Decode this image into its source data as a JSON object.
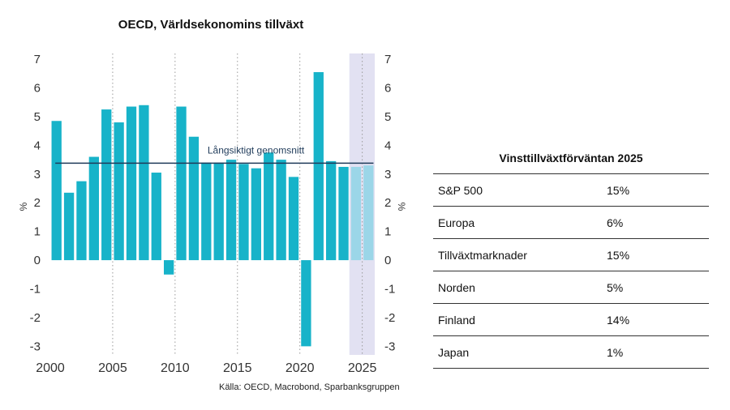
{
  "chart_data": {
    "type": "bar",
    "title": "OECD, Världsekonomins tillväxt",
    "y_unit_left": "%",
    "y_unit_right": "%",
    "ylim": [
      -3.3,
      7.2
    ],
    "y_ticks": [
      7,
      6,
      5,
      4,
      3,
      2,
      1,
      0,
      -1,
      -2,
      -3
    ],
    "y_tick_labels": [
      "7",
      "6",
      "5",
      "4",
      "3",
      "2",
      "1",
      "0",
      "-1",
      "-2",
      "-3"
    ],
    "x_ticks": [
      2000,
      2005,
      2010,
      2015,
      2020,
      2025
    ],
    "x_tick_labels": [
      "2000",
      "2005",
      "2010",
      "2015",
      "2020",
      "2025"
    ],
    "years": [
      2000,
      2001,
      2002,
      2003,
      2004,
      2005,
      2006,
      2007,
      2008,
      2009,
      2010,
      2011,
      2012,
      2013,
      2014,
      2015,
      2016,
      2017,
      2018,
      2019,
      2020,
      2021,
      2022,
      2023,
      2024,
      2025
    ],
    "values": [
      4.85,
      2.35,
      2.75,
      3.6,
      5.25,
      4.8,
      5.35,
      5.4,
      3.05,
      -0.5,
      5.35,
      4.3,
      3.4,
      3.4,
      3.5,
      3.35,
      3.2,
      3.75,
      3.5,
      2.9,
      -3.0,
      6.55,
      3.45,
      3.25,
      3.25,
      3.3
    ],
    "forecast_from": 2024,
    "reference_line": {
      "label": "Långsiktigt genomsnitt",
      "value": 3.38
    },
    "colors": {
      "bar": "#17b3c9",
      "bar_forecast": "#9bd6e8",
      "forecast_band": "#e2e1f2",
      "reference_line": "#1f3b5a"
    },
    "grid": "vertical dotted at x ticks"
  },
  "source": "Källa: OECD, Macrobond, Sparbanksgruppen",
  "table": {
    "title": "Vinsttillväxtförväntan 2025",
    "rows": [
      {
        "label": "S&P 500",
        "value": "15%"
      },
      {
        "label": "Europa",
        "value": "6%"
      },
      {
        "label": "Tillväxtmarknader",
        "value": "15%"
      },
      {
        "label": "Norden",
        "value": "5%"
      },
      {
        "label": "Finland",
        "value": "14%"
      },
      {
        "label": "Japan",
        "value": "1%"
      }
    ]
  }
}
